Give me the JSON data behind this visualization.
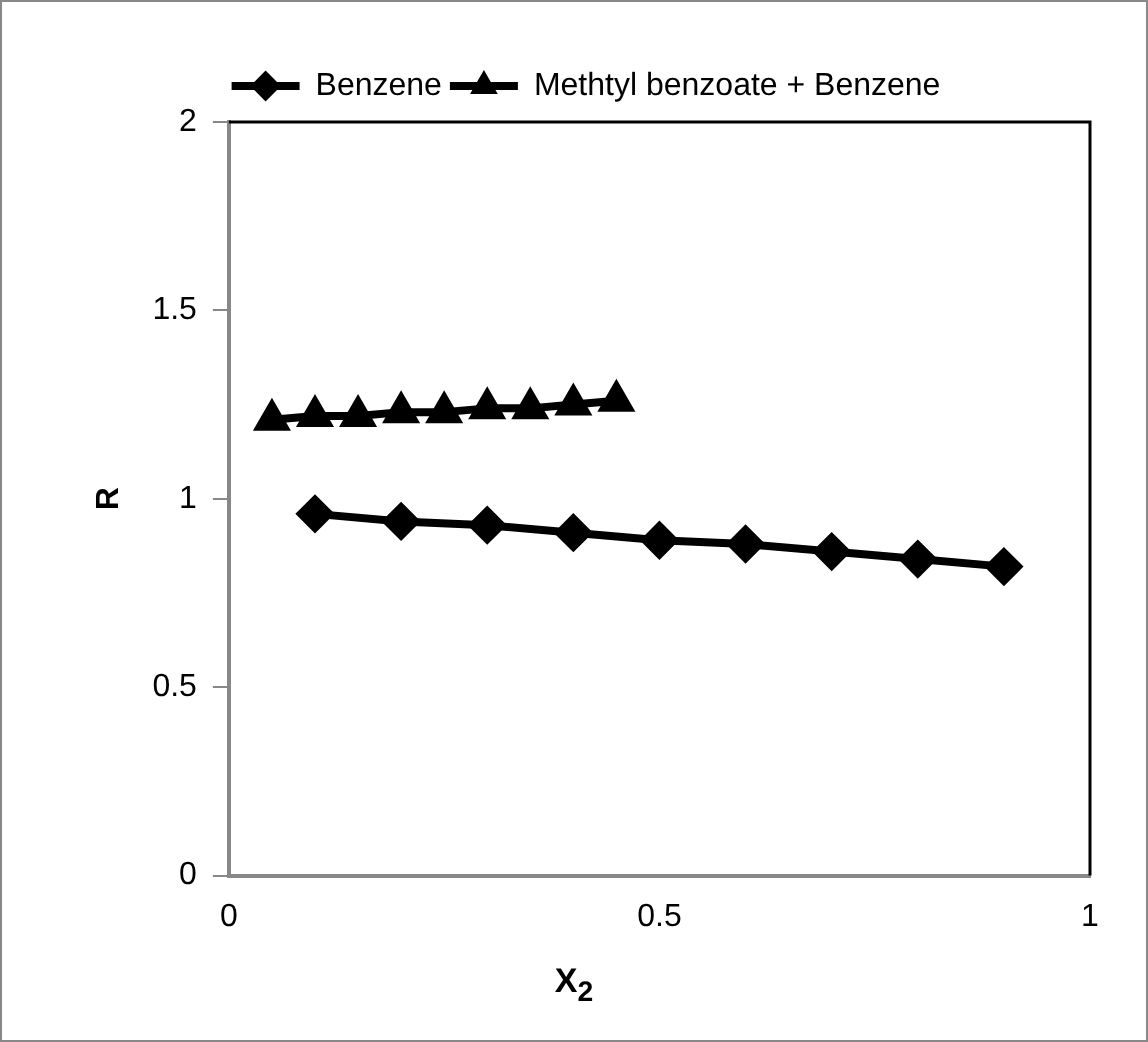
{
  "chart_data": {
    "type": "line",
    "xlabel": "X$_{2}$",
    "ylabel": "R",
    "xlim": [
      0,
      1
    ],
    "xticks": [
      0,
      0.5,
      1
    ],
    "ylim": [
      0,
      2
    ],
    "yticks": [
      0,
      0.5,
      1,
      1.5,
      2
    ],
    "grid": false,
    "legend": "top",
    "series": [
      {
        "name": "Benzene",
        "color": "#000000",
        "marker": "diamond",
        "x": [
          0.1,
          0.2,
          0.3,
          0.4,
          0.5,
          0.6,
          0.7,
          0.8,
          0.9
        ],
        "values": [
          0.96,
          0.94,
          0.93,
          0.91,
          0.89,
          0.88,
          0.86,
          0.84,
          0.82
        ]
      },
      {
        "name": "Methtyl benzoate + Benzene",
        "color": "#000000",
        "marker": "triangle",
        "x": [
          0.05,
          0.1,
          0.15,
          0.2,
          0.25,
          0.3,
          0.35,
          0.4,
          0.45
        ],
        "values": [
          1.21,
          1.22,
          1.22,
          1.23,
          1.23,
          1.24,
          1.24,
          1.25,
          1.26
        ]
      }
    ]
  }
}
